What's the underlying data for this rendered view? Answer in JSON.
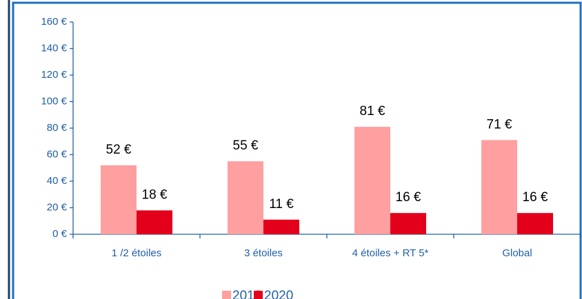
{
  "chart_data": {
    "type": "bar",
    "categories": [
      "1 /2 étoiles",
      "3 étoiles",
      "4 étoiles + RT 5*",
      "Global"
    ],
    "series": [
      {
        "name": "2019",
        "color": "#ff9f9f",
        "values": [
          52,
          55,
          81,
          71
        ],
        "value_labels": [
          "52 €",
          "55 €",
          "81 €",
          "71 €"
        ]
      },
      {
        "name": "2020",
        "color": "#e3001b",
        "values": [
          18,
          11,
          16,
          16
        ],
        "value_labels": [
          "18 €",
          "11 €",
          "16 €",
          "16 €"
        ]
      }
    ],
    "ylim": [
      0,
      160
    ],
    "yticks": [
      {
        "value": 0,
        "label": "0 €"
      },
      {
        "value": 20,
        "label": "20 €"
      },
      {
        "value": 40,
        "label": "40 €"
      },
      {
        "value": 60,
        "label": "60 €"
      },
      {
        "value": 80,
        "label": "80 €"
      },
      {
        "value": 100,
        "label": "100 €"
      },
      {
        "value": 120,
        "label": "120 €"
      },
      {
        "value": 140,
        "label": "140 €"
      },
      {
        "value": 160,
        "label": "160 €"
      }
    ],
    "legend": "bottom"
  }
}
